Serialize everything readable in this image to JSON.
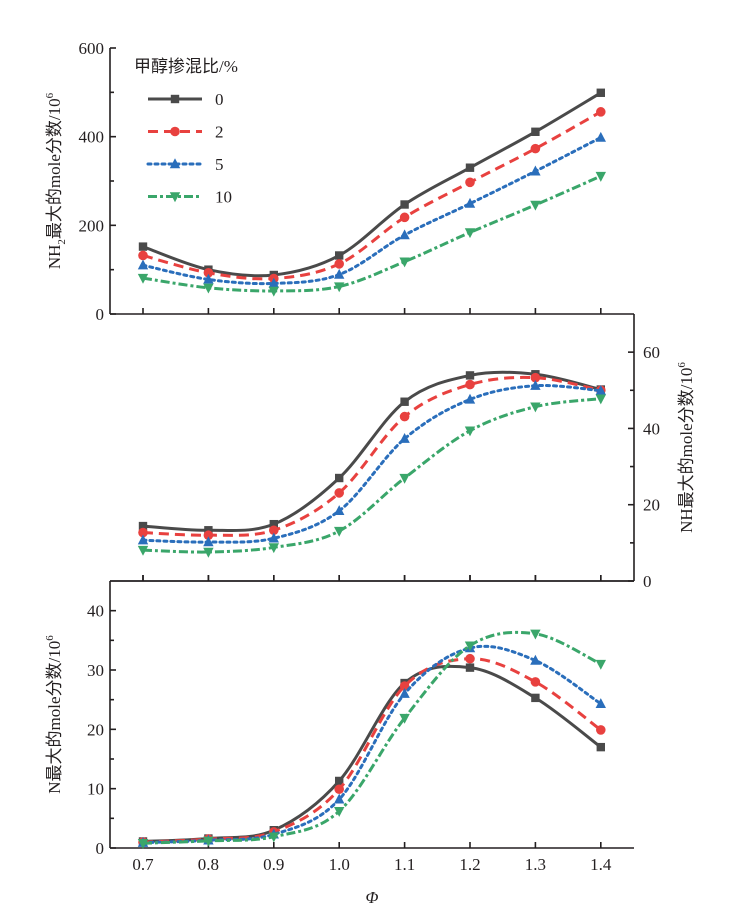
{
  "chart_data": {
    "type": "line",
    "x": [
      0.7,
      0.8,
      0.9,
      1.0,
      1.1,
      1.2,
      1.3,
      1.4
    ],
    "x_tick_labels": [
      "0.7",
      "0.8",
      "0.9",
      "1.0",
      "1.1",
      "1.2",
      "1.3",
      "1.4"
    ],
    "xlabel": "Φ",
    "xlim": [
      0.65,
      1.45
    ],
    "legend": {
      "title": "甲醇掺混比/%",
      "placement": "top-left",
      "entries": [
        {
          "label": "0",
          "color": "#4a4a4a",
          "dash": "solid",
          "marker": "square"
        },
        {
          "label": "2",
          "color": "#e8413f",
          "dash": "dashed",
          "marker": "circle"
        },
        {
          "label": "5",
          "color": "#2a6ebb",
          "dash": "dotted",
          "marker": "triangle-up"
        },
        {
          "label": "10",
          "color": "#3aa66a",
          "dash": "dash-dot",
          "marker": "triangle-down"
        }
      ]
    },
    "panels": [
      {
        "name": "NH2",
        "ylabel_main": "NH",
        "ylabel_sub": "2",
        "ylabel_rest": "最大的mole分数/10",
        "ylabel_sup": "6",
        "y_axis_side": "left",
        "ylim": [
          0,
          600
        ],
        "y_ticks": [
          0,
          200,
          400,
          600
        ],
        "y_tick_labels": [
          "0",
          "200",
          "400",
          "600"
        ],
        "y_minor_ticks": [
          100,
          300,
          500
        ],
        "series": [
          {
            "name": "0",
            "values": [
              152,
              100,
              88,
              132,
              247,
              330,
              411,
              499
            ]
          },
          {
            "name": "2",
            "values": [
              132,
              93,
              80,
              113,
              218,
              297,
              373,
              456
            ]
          },
          {
            "name": "5",
            "values": [
              110,
              78,
              69,
              89,
              178,
              249,
              322,
              398
            ]
          },
          {
            "name": "10",
            "values": [
              81,
              59,
              52,
              62,
              118,
              184,
              246,
              311
            ]
          }
        ]
      },
      {
        "name": "NH",
        "ylabel_main": "NH",
        "ylabel_sub": "",
        "ylabel_rest": "最大的mole分数/10",
        "ylabel_sup": "6",
        "y_axis_side": "right",
        "ylim": [
          0,
          70
        ],
        "y_ticks": [
          0,
          20,
          40,
          60
        ],
        "y_tick_labels": [
          "0",
          "20",
          "40",
          "60"
        ],
        "y_minor_ticks": [
          10,
          30,
          50
        ],
        "series": [
          {
            "name": "0",
            "values": [
              14.4,
              13.3,
              14.9,
              27.0,
              47.0,
              53.9,
              54.2,
              50.2
            ]
          },
          {
            "name": "2",
            "values": [
              12.7,
              12.0,
              13.3,
              23.1,
              43.1,
              51.5,
              53.3,
              50.0
            ]
          },
          {
            "name": "5",
            "values": [
              10.7,
              10.2,
              11.2,
              18.4,
              37.3,
              47.6,
              51.2,
              49.9
            ]
          },
          {
            "name": "10",
            "values": [
              8.1,
              7.6,
              8.8,
              13.1,
              27.0,
              39.4,
              45.7,
              47.8
            ]
          }
        ]
      },
      {
        "name": "N",
        "ylabel_main": "N",
        "ylabel_sub": "",
        "ylabel_rest": "最大的mole分数/10",
        "ylabel_sup": "6",
        "y_axis_side": "left",
        "ylim": [
          0,
          45
        ],
        "y_ticks": [
          0,
          10,
          20,
          30,
          40
        ],
        "y_tick_labels": [
          "0",
          "10",
          "20",
          "30",
          "40"
        ],
        "y_minor_ticks": [
          5,
          15,
          25,
          35
        ],
        "series": [
          {
            "name": "0",
            "values": [
              1.1,
              1.6,
              3.0,
              11.3,
              27.8,
              30.4,
              25.3,
              17.0
            ]
          },
          {
            "name": "2",
            "values": [
              1.0,
              1.5,
              2.7,
              9.9,
              27.3,
              31.9,
              28.0,
              19.9
            ]
          },
          {
            "name": "5",
            "values": [
              0.9,
              1.3,
              2.3,
              8.2,
              26.0,
              33.7,
              31.6,
              24.3
            ]
          },
          {
            "name": "10",
            "values": [
              0.8,
              1.2,
              1.9,
              6.2,
              21.9,
              34.1,
              36.1,
              31.0
            ]
          }
        ]
      }
    ]
  }
}
